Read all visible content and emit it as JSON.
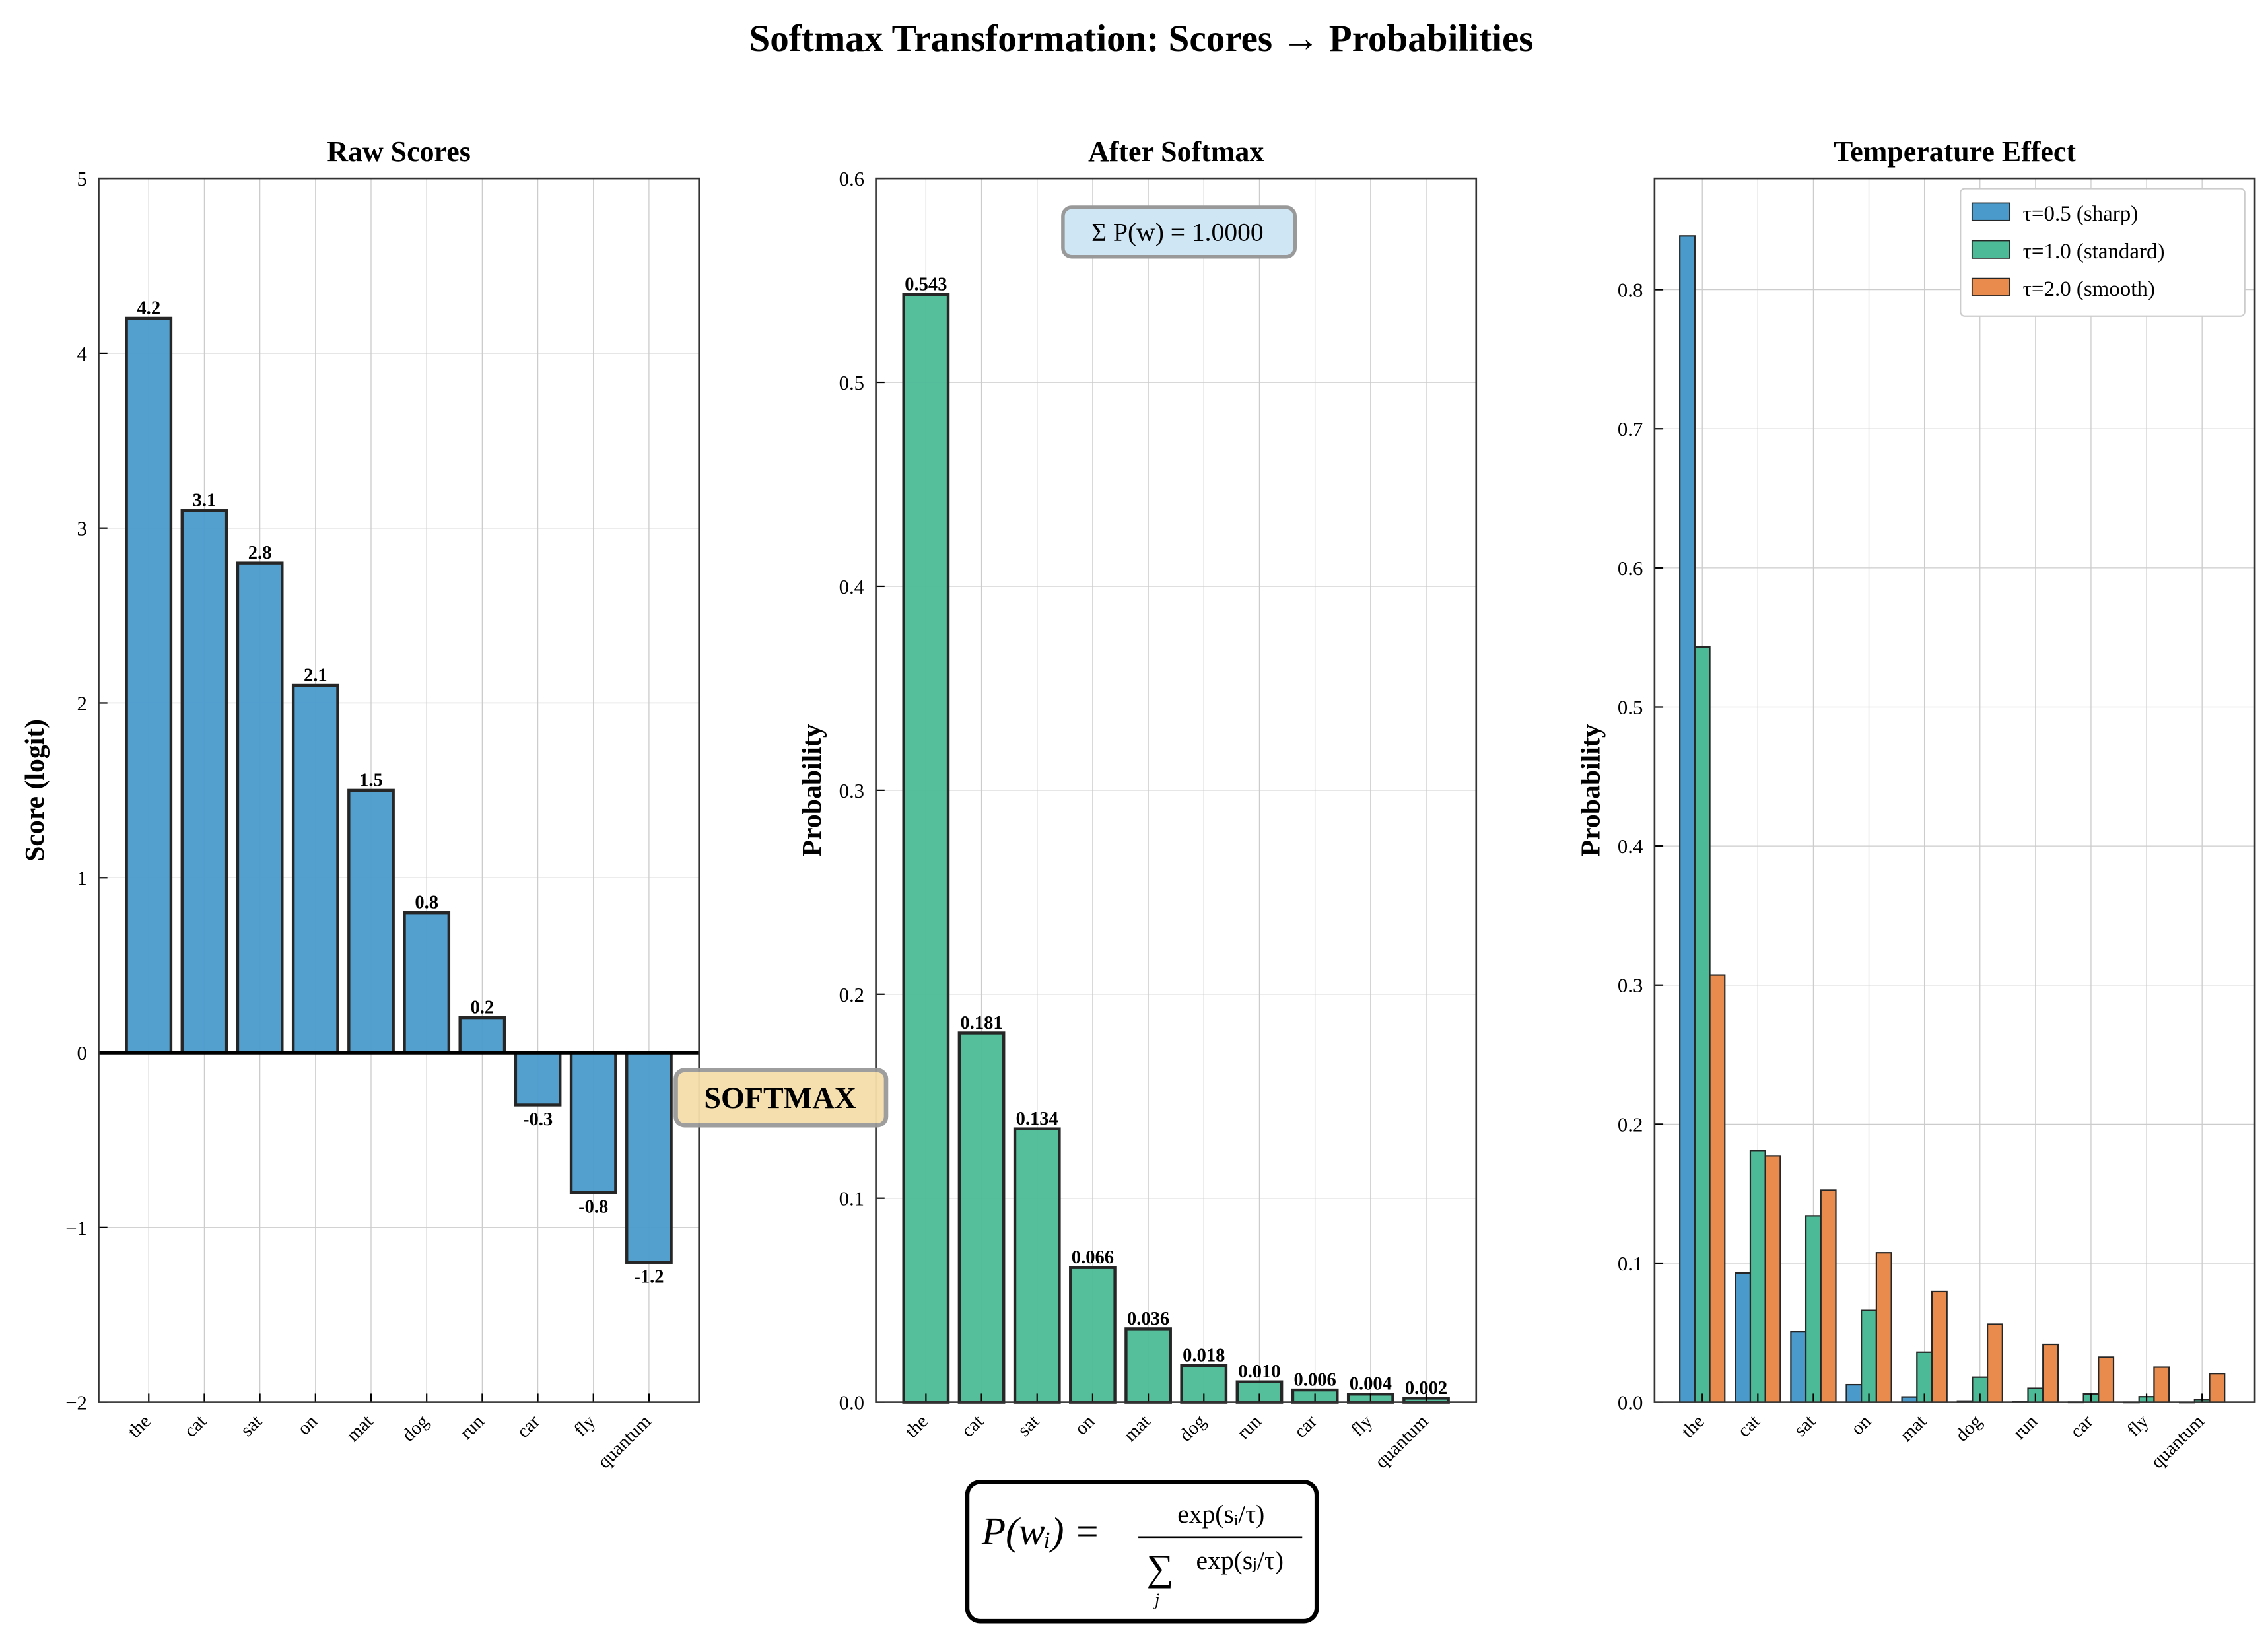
{
  "title": "Softmax Transformation: Scores → Probabilities",
  "softmax_label": "SOFTMAX",
  "formula": {
    "lhs": "P(wᵢ) =",
    "numerator": "exp(sᵢ/τ)",
    "denominator_sum": "∑",
    "denominator_index": "j",
    "denominator": "exp(sⱼ/τ)"
  },
  "colors": {
    "blue": "#4a9acb",
    "green": "#4cba96",
    "orange": "#e88b4c",
    "edge": "#262626"
  },
  "chart_data": [
    {
      "type": "bar",
      "title": "Raw Scores",
      "xlabel": "",
      "ylabel": "Score (logit)",
      "categories": [
        "the",
        "cat",
        "sat",
        "on",
        "mat",
        "dog",
        "run",
        "car",
        "fly",
        "quantum"
      ],
      "values": [
        4.2,
        3.1,
        2.8,
        2.1,
        1.5,
        0.8,
        0.2,
        -0.3,
        -0.8,
        -1.2
      ],
      "data_labels": [
        "4.2",
        "3.1",
        "2.8",
        "2.1",
        "1.5",
        "0.8",
        "0.2",
        "-0.3",
        "-0.8",
        "-1.2"
      ],
      "ylim": [
        -2,
        5
      ],
      "yticks": [
        -2,
        -1,
        0,
        1,
        2,
        3,
        4,
        5
      ],
      "ytick_labels": [
        "−2",
        "−1",
        "0",
        "1",
        "2",
        "3",
        "4",
        "5"
      ],
      "grid": true
    },
    {
      "type": "bar",
      "title": "After Softmax",
      "xlabel": "",
      "ylabel": "Probability",
      "categories": [
        "the",
        "cat",
        "sat",
        "on",
        "mat",
        "dog",
        "run",
        "car",
        "fly",
        "quantum"
      ],
      "values": [
        0.543,
        0.181,
        0.134,
        0.066,
        0.036,
        0.018,
        0.01,
        0.006,
        0.004,
        0.002
      ],
      "data_labels": [
        "0.543",
        "0.181",
        "0.134",
        "0.066",
        "0.036",
        "0.018",
        "0.010",
        "0.006",
        "0.004",
        "0.002"
      ],
      "annotation": "Σ P(w) = 1.0000",
      "ylim": [
        0,
        0.6
      ],
      "yticks": [
        0,
        0.1,
        0.2,
        0.3,
        0.4,
        0.5,
        0.6
      ],
      "ytick_labels": [
        "0.0",
        "0.1",
        "0.2",
        "0.3",
        "0.4",
        "0.5",
        "0.6"
      ],
      "grid": true
    },
    {
      "type": "bar",
      "title": "Temperature Effect",
      "xlabel": "",
      "ylabel": "Probability",
      "categories": [
        "the",
        "cat",
        "sat",
        "on",
        "mat",
        "dog",
        "run",
        "car",
        "fly",
        "quantum"
      ],
      "series": [
        {
          "name": "τ=0.5 (sharp)",
          "values": [
            0.8386,
            0.0929,
            0.051,
            0.0126,
            0.0038,
            0.0009,
            0.0003,
            0.0001,
            4e-05,
            2e-05
          ]
        },
        {
          "name": "τ=1.0 (standard)",
          "values": [
            0.543,
            0.181,
            0.134,
            0.066,
            0.036,
            0.018,
            0.01,
            0.006,
            0.004,
            0.002
          ]
        },
        {
          "name": "τ=2.0 (smooth)",
          "values": [
            0.3072,
            0.1772,
            0.1525,
            0.1075,
            0.0796,
            0.0561,
            0.0416,
            0.0324,
            0.0252,
            0.0206
          ]
        }
      ],
      "ylim": [
        0,
        0.88
      ],
      "yticks": [
        0,
        0.1,
        0.2,
        0.3,
        0.4,
        0.5,
        0.6,
        0.7,
        0.8
      ],
      "ytick_labels": [
        "0.0",
        "0.1",
        "0.2",
        "0.3",
        "0.4",
        "0.5",
        "0.6",
        "0.7",
        "0.8"
      ],
      "legend": "top-right",
      "grid": true
    }
  ]
}
